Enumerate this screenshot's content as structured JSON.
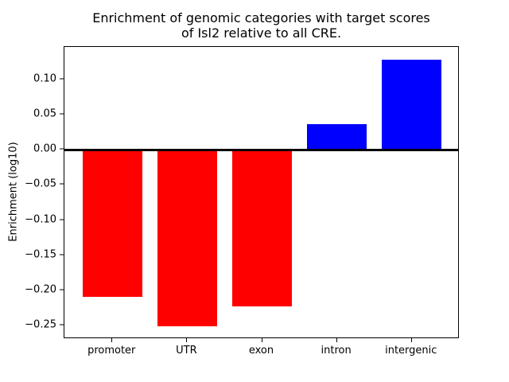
{
  "chart_data": {
    "type": "bar",
    "title": "Enrichment of genomic categories with target scores\nof Isl2 relative to all CRE.",
    "xlabel": "",
    "ylabel": "Enrichment (log10)",
    "categories": [
      "promoter",
      "UTR",
      "exon",
      "intron",
      "intergenic"
    ],
    "values": [
      -0.209,
      -0.251,
      -0.223,
      0.037,
      0.128
    ],
    "bar_colors": [
      "#ff0000",
      "#ff0000",
      "#ff0000",
      "#0000ff",
      "#0000ff"
    ],
    "negative_color": "#ff0000",
    "positive_color": "#0000ff",
    "bar_width": 0.8,
    "xlim": [
      -0.64,
      4.64
    ],
    "ylim": [
      -0.2693,
      0.1465
    ],
    "yticks": [
      0.1,
      0.05,
      0.0,
      -0.05,
      -0.1,
      -0.15,
      -0.2,
      -0.25
    ],
    "ytick_labels": [
      "0.10",
      "0.05",
      "0.00",
      "−0.05",
      "−0.10",
      "−0.15",
      "−0.20",
      "−0.25"
    ],
    "zero_line": true,
    "grid": false,
    "legend": false,
    "background": "#ffffff",
    "axis_color": "#000000"
  }
}
